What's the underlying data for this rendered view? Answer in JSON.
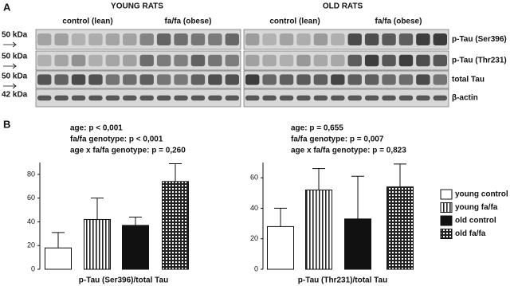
{
  "panel_a": {
    "label": "A",
    "groups": [
      {
        "title": "YOUNG RATS",
        "subgroups": [
          "control (lean)",
          "fa/fa (obese)"
        ]
      },
      {
        "title": "OLD RATS",
        "subgroups": [
          "control (lean)",
          "fa/fa (obese)"
        ]
      }
    ],
    "markers": [
      "50 kDa",
      "50 kDa",
      "50 kDa",
      "42 kDa"
    ],
    "proteins": [
      "p-Tau (Ser396)",
      "p-Tau (Thr231)",
      "total Tau",
      "β-actin"
    ]
  },
  "panel_b": {
    "label": "B"
  },
  "chart_data": [
    {
      "type": "bar",
      "annotations": [
        "age: p < 0,001",
        "fa/fa genotype: p < 0,001",
        "age x fa/fa genotype: p = 0,260"
      ],
      "x_label": "p-Tau (Ser396)/total Tau",
      "ylim": [
        0,
        90
      ],
      "yticks": [
        0,
        20,
        40,
        60,
        80
      ],
      "series": [
        {
          "pattern": "white",
          "values": [
            18
          ],
          "errors": [
            13
          ]
        },
        {
          "pattern": "stripes",
          "values": [
            42
          ],
          "errors": [
            18
          ]
        },
        {
          "pattern": "black",
          "values": [
            37
          ],
          "errors": [
            7
          ]
        },
        {
          "pattern": "grid",
          "values": [
            74
          ],
          "errors": [
            15
          ]
        }
      ]
    },
    {
      "type": "bar",
      "annotations": [
        "age: p = 0,655",
        "fa/fa genotype: p = 0,007",
        "age x fa/fa genotype: p = 0,823"
      ],
      "x_label": "p-Tau (Thr231)/total Tau",
      "ylim": [
        0,
        70
      ],
      "yticks": [
        0,
        20,
        40,
        60
      ],
      "legend": "right",
      "series": [
        {
          "name": "young control",
          "pattern": "white",
          "values": [
            28
          ],
          "errors": [
            12
          ]
        },
        {
          "name": "young fa/fa",
          "pattern": "stripes",
          "values": [
            52
          ],
          "errors": [
            14
          ]
        },
        {
          "name": "old control",
          "pattern": "black",
          "values": [
            33
          ],
          "errors": [
            28
          ]
        },
        {
          "name": "old fa/fa",
          "pattern": "grid",
          "values": [
            54
          ],
          "errors": [
            15
          ]
        }
      ]
    }
  ]
}
